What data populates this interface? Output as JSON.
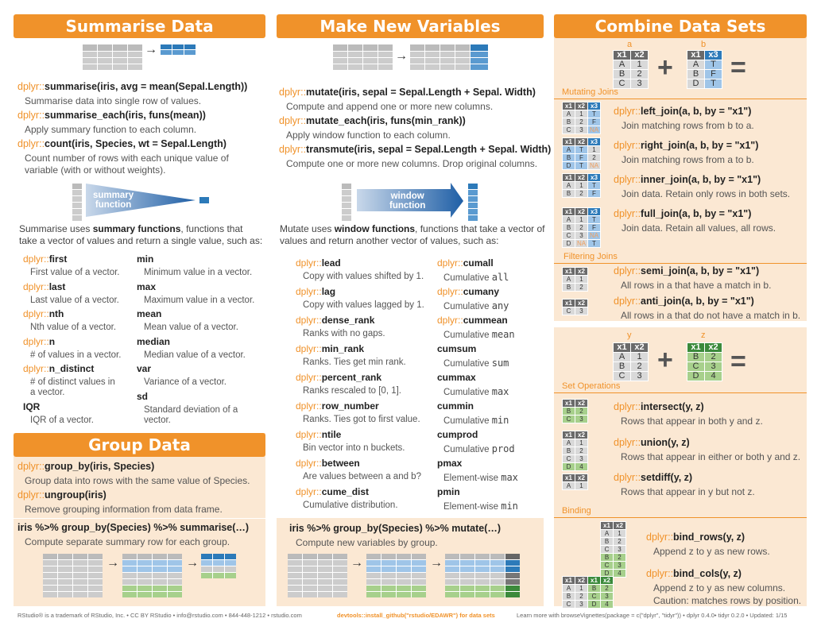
{
  "summarise": {
    "title": "Summarise Data",
    "fns": [
      {
        "pre": "dplyr::",
        "call": "summarise(iris, avg = mean(Sepal.Length))",
        "desc": "Summarise data into single row of values."
      },
      {
        "pre": "dplyr::",
        "call": "summarise_each(iris, funs(mean))",
        "desc": "Apply summary function to each column."
      },
      {
        "pre": "dplyr::",
        "call": "count(iris, Species, wt = Sepal.Length)",
        "desc": "Count number of rows with each unique value of",
        "desc2": "variable (with or without weights)."
      }
    ],
    "arrow_label": "summary\nfunction",
    "intro1_a": "Summarise uses ",
    "intro1_b": "summary functions",
    "intro1_c": ", functions that",
    "intro2": "take a vector of values and return a single value, such as:",
    "left": [
      {
        "pre": "dplyr::",
        "name": "first",
        "desc": "First value of a vector."
      },
      {
        "pre": "dplyr::",
        "name": "last",
        "desc": "Last value of a vector."
      },
      {
        "pre": "dplyr::",
        "name": "nth",
        "desc": "Nth value of a vector."
      },
      {
        "pre": "dplyr::",
        "name": "n",
        "desc": "# of values in a vector."
      },
      {
        "pre": "dplyr::",
        "name": "n_distinct",
        "desc": "# of distinct values in",
        "desc2": "a vector."
      },
      {
        "pre": "",
        "name": "IQR",
        "desc": "IQR of a vector."
      }
    ],
    "right": [
      {
        "name": "min",
        "desc": "Minimum value in a vector."
      },
      {
        "name": "max",
        "desc": "Maximum value in a vector."
      },
      {
        "name": "mean",
        "desc": "Mean value of a vector."
      },
      {
        "name": "median",
        "desc": "Median value of a vector."
      },
      {
        "name": "var",
        "desc": "Variance of a vector."
      },
      {
        "name": "sd",
        "desc": "Standard deviation of a",
        "desc2": "vector."
      }
    ]
  },
  "group": {
    "title": "Group Data",
    "fns": [
      {
        "pre": "dplyr::",
        "call": "group_by(iris, Species)",
        "desc": "Group data into rows with the same value of Species."
      },
      {
        "pre": "dplyr::",
        "call": "ungroup(iris)",
        "desc": "Remove grouping information from data frame."
      }
    ],
    "pipe": "iris  %>%  group_by(Species)  %>%  summarise(…)",
    "pipe_desc": "Compute separate summary row for each group."
  },
  "mutate": {
    "title": "Make New Variables",
    "fns": [
      {
        "pre": "dplyr::",
        "call": "mutate(iris, sepal = Sepal.Length + Sepal. Width)",
        "desc": "Compute and append one or more new columns."
      },
      {
        "pre": "dplyr::",
        "call": "mutate_each(iris, funs(min_rank))",
        "desc": "Apply window function to each column."
      },
      {
        "pre": "dplyr::",
        "call": "transmute(iris, sepal = Sepal.Length + Sepal. Width)",
        "desc": "Compute one or more new columns. Drop original columns."
      }
    ],
    "arrow_label": "window\nfunction",
    "intro1_a": "Mutate uses ",
    "intro1_b": "window functions",
    "intro1_c": ", functions that take a vector of",
    "intro2": "values and return another vector of values, such as:",
    "left": [
      {
        "pre": "dplyr::",
        "name": "lead",
        "desc": "Copy with values shifted by 1."
      },
      {
        "pre": "dplyr::",
        "name": "lag",
        "desc": "Copy with values lagged by 1."
      },
      {
        "pre": "dplyr::",
        "name": "dense_rank",
        "desc": "Ranks with no gaps."
      },
      {
        "pre": "dplyr::",
        "name": "min_rank",
        "desc": "Ranks. Ties get min rank."
      },
      {
        "pre": "dplyr::",
        "name": "percent_rank",
        "desc": "Ranks rescaled to [0, 1]."
      },
      {
        "pre": "dplyr::",
        "name": "row_number",
        "desc": "Ranks. Ties got to first value."
      },
      {
        "pre": "dplyr::",
        "name": "ntile",
        "desc": "Bin vector into n buckets."
      },
      {
        "pre": "dplyr::",
        "name": "between",
        "desc": "Are values between a and b?"
      },
      {
        "pre": "dplyr::",
        "name": "cume_dist",
        "desc": "Cumulative distribution."
      }
    ],
    "right": [
      {
        "pre": "dplyr::",
        "name": "cumall",
        "desc": "Cumulative ",
        "mono": "all"
      },
      {
        "pre": "dplyr::",
        "name": "cumany",
        "desc": "Cumulative ",
        "mono": "any"
      },
      {
        "pre": "dplyr::",
        "name": "cummean",
        "desc": "Cumulative ",
        "mono": "mean"
      },
      {
        "pre": "",
        "name": "cumsum",
        "desc": "Cumulative ",
        "mono": "sum"
      },
      {
        "pre": "",
        "name": "cummax",
        "desc": "Cumulative ",
        "mono": "max"
      },
      {
        "pre": "",
        "name": "cummin",
        "desc": "Cumulative ",
        "mono": "min"
      },
      {
        "pre": "",
        "name": "cumprod",
        "desc": "Cumulative ",
        "mono": "prod"
      },
      {
        "pre": "",
        "name": "pmax",
        "desc": "Element-wise ",
        "mono": "max"
      },
      {
        "pre": "",
        "name": "pmin",
        "desc": "Element-wise ",
        "mono": "min"
      }
    ],
    "pipe": "iris  %>%  group_by(Species)  %>%  mutate(…)",
    "pipe_desc": "Compute new variables by group."
  },
  "combine": {
    "title": "Combine Data Sets",
    "a_label": "a",
    "b_label": "b",
    "y_label": "y",
    "z_label": "z",
    "mutating": "Mutating Joins",
    "filtering": "Filtering Joins",
    "setops": "Set Operations",
    "binding": "Binding",
    "joins": [
      {
        "pre": "dplyr::",
        "call": "left_join(a, b, by = \"x1\")",
        "desc": "Join matching rows from b to a."
      },
      {
        "pre": "dplyr::",
        "call": "right_join(a, b, by = \"x1\")",
        "desc": "Join matching rows from a to b."
      },
      {
        "pre": "dplyr::",
        "call": "inner_join(a, b, by = \"x1\")",
        "desc": "Join data. Retain only rows in both sets."
      },
      {
        "pre": "dplyr::",
        "call": "full_join(a, b, by = \"x1\")",
        "desc": "Join data. Retain all values, all rows."
      }
    ],
    "filters": [
      {
        "pre": "dplyr::",
        "call": "semi_join(a, b, by = \"x1\")",
        "desc": "All rows in a that have a match in b."
      },
      {
        "pre": "dplyr::",
        "call": "anti_join(a, b, by = \"x1\")",
        "desc": "All rows in a that do not have a match in b."
      }
    ],
    "sets": [
      {
        "pre": "dplyr::",
        "call": "intersect(y, z)",
        "desc": "Rows that appear in both y and z."
      },
      {
        "pre": "dplyr::",
        "call": "union(y, z)",
        "desc": "Rows that appear in either or both y and z."
      },
      {
        "pre": "dplyr::",
        "call": "setdiff(y, z)",
        "desc": "Rows that appear in y but not z."
      }
    ],
    "binds": [
      {
        "pre": "dplyr::",
        "call": "bind_rows(y, z)",
        "desc": "Append z to y as new rows."
      },
      {
        "pre": "dplyr::",
        "call": "bind_cols(y, z)",
        "desc": "Append z to y as new columns.",
        "desc2": "Caution: matches rows by position."
      }
    ]
  },
  "footer": {
    "left": "RStudio® is a trademark of RStudio, Inc.  •  CC BY RStudio •  info@rstudio.com  •  844-448-1212 • rstudio.com",
    "mid": "devtools::install_github(\"rstudio/EDAWR\") for data sets",
    "right": "Learn more with browseVignettes(package = c(\"dplyr\", \"tidyr\"))  •  dplyr  0.4.0•  tidyr  0.2.0  •  Updated: 1/15"
  },
  "colors": {
    "orange": "#f0922a",
    "cream": "#fbe8d3",
    "blue": "#2c7ab9",
    "green": "#3b8a3b"
  }
}
